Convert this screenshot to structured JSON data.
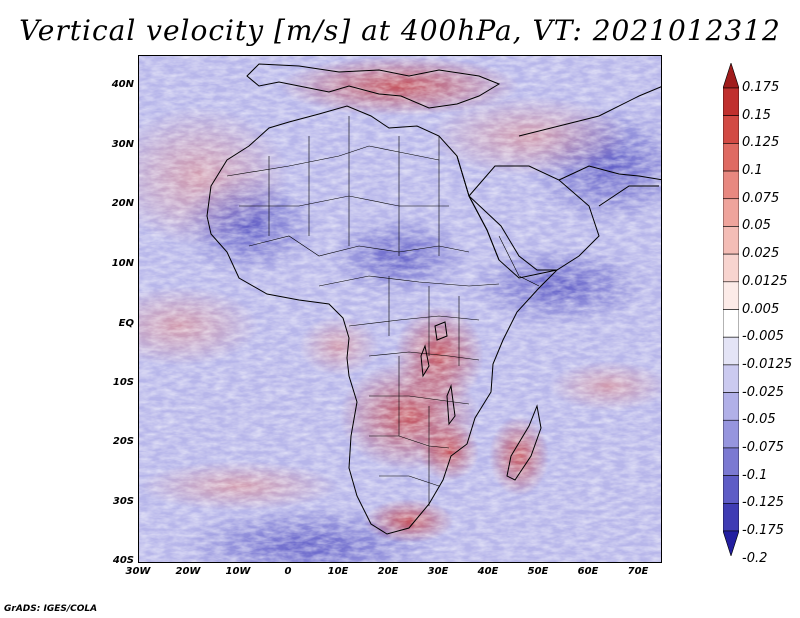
{
  "title": "Vertical velocity [m/s] at 400hPa, VT: 2021012312",
  "credit": "GrADS: IGES/COLA",
  "lat_labels": [
    "40N",
    "30N",
    "20N",
    "10N",
    "EQ",
    "10S",
    "20S",
    "30S",
    "40S"
  ],
  "lon_labels": [
    "30W",
    "20W",
    "10W",
    "0",
    "10E",
    "20E",
    "30E",
    "40E",
    "50E",
    "60E",
    "70E"
  ],
  "colorbar": {
    "labels": [
      "0.175",
      "0.15",
      "0.125",
      "0.1",
      "0.075",
      "0.05",
      "0.025",
      "0.0125",
      "0.005",
      "-0.005",
      "-0.0125",
      "-0.025",
      "-0.05",
      "-0.075",
      "-0.1",
      "-0.125",
      "-0.175",
      "-0.2"
    ],
    "colors": [
      "#a01c1c",
      "#c0302e",
      "#d24a44",
      "#df6a62",
      "#e88880",
      "#efa49c",
      "#f4bdb6",
      "#f8d4cf",
      "#fcebe8",
      "#ffffff",
      "#e4e4f6",
      "#cbcaf0",
      "#b1b0e8",
      "#9695de",
      "#7b79d2",
      "#5e5cc6",
      "#3f3cb4",
      "#231fa0"
    ]
  },
  "map": {
    "region": "Africa",
    "lon_range": [
      -30,
      75
    ],
    "lat_range": [
      -40,
      45
    ]
  }
}
